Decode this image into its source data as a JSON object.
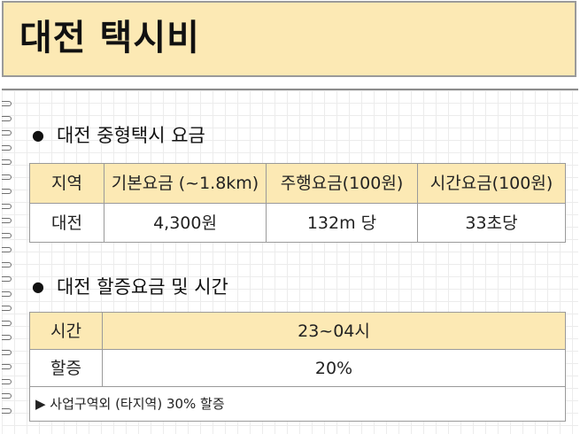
{
  "page": {
    "title": "대전 택시비"
  },
  "section1": {
    "bullet": "●",
    "title": "대전 중형택시 요금",
    "headers": [
      "지역",
      "기본요금 (~1.8km)",
      "주행요금(100원)",
      "시간요금(100원)"
    ],
    "row": [
      "대전",
      "4,300원",
      "132m 당",
      "33초당"
    ]
  },
  "section2": {
    "bullet": "●",
    "title": "대전 할증요금 및 시간",
    "rows": [
      {
        "label": "시간",
        "value": "23~04시"
      },
      {
        "label": "할증",
        "value": "20%"
      }
    ],
    "note": "▶ 사업구역외 (타지역) 30% 할증"
  },
  "colors": {
    "header_fill": "#fce9b4",
    "border": "#9a9a9a",
    "grid": "#ececec"
  }
}
